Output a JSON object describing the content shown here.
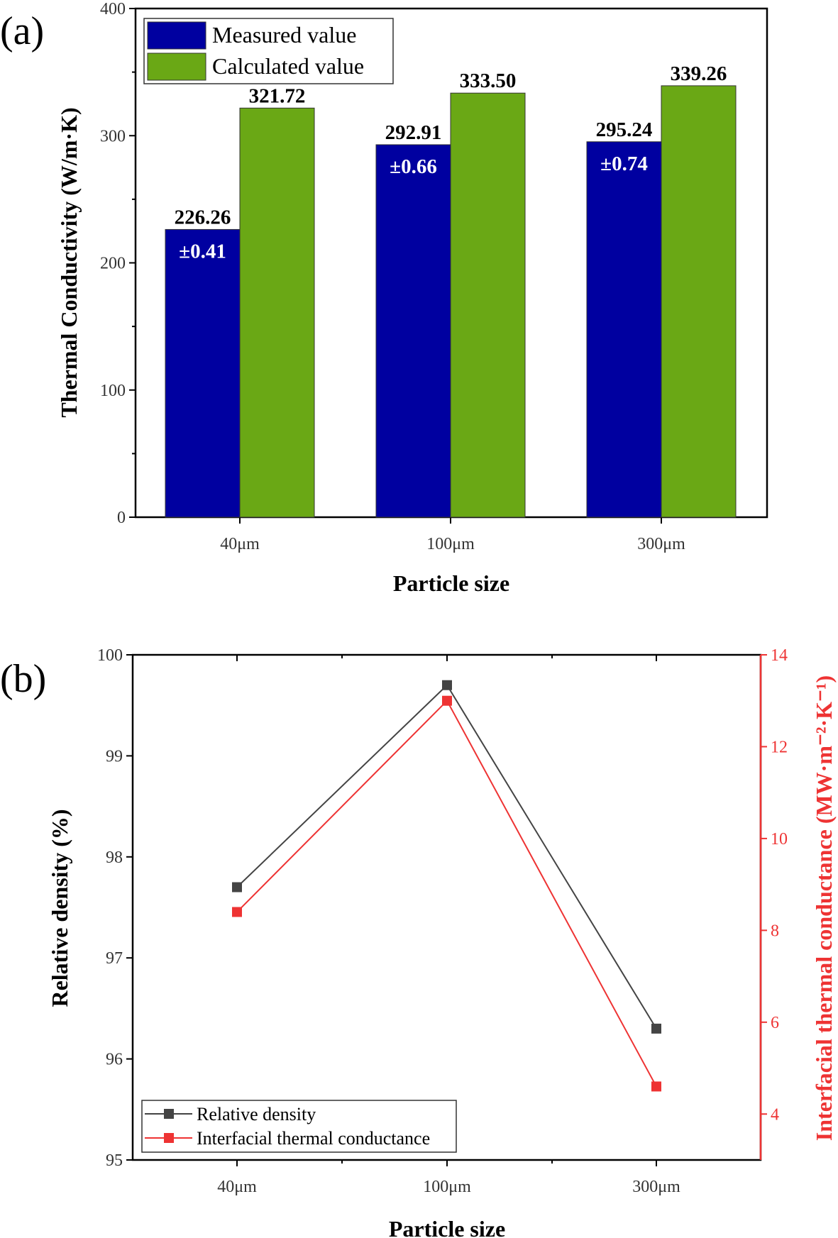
{
  "chart_data": [
    {
      "type": "bar",
      "panel_label": "(a)",
      "title": "",
      "xlabel": "Particle size",
      "ylabel": "Thermal Conductivity (W/m·K)",
      "categories": [
        "40μm",
        "100μm",
        "300μm"
      ],
      "ylim": [
        0,
        400
      ],
      "yticks": [
        "0",
        "100",
        "200",
        "300",
        "400"
      ],
      "legend_position": "top-left",
      "series": [
        {
          "name": "Measured value",
          "color": "#0000a0",
          "values": [
            226.26,
            292.91,
            295.24
          ],
          "labels": [
            "226.26",
            "292.91",
            "295.24"
          ],
          "errors": [
            "±0.41",
            "±0.66",
            "±0.74"
          ]
        },
        {
          "name": "Calculated value",
          "color": "#6aa815",
          "values": [
            321.72,
            333.5,
            339.26
          ],
          "labels": [
            "321.72",
            "333.50",
            "339.26"
          ]
        }
      ]
    },
    {
      "type": "line",
      "panel_label": "(b)",
      "xlabel": "Particle size",
      "ylabel": "Relative density (%)",
      "y2label": "Interfacial thermal conductance (MW·m⁻²·K⁻¹)",
      "categories": [
        "40μm",
        "100μm",
        "300μm"
      ],
      "ylim": [
        95,
        100
      ],
      "yticks": [
        "95",
        "96",
        "97",
        "98",
        "99",
        "100"
      ],
      "y2lim": [
        3,
        14
      ],
      "y2ticks": [
        "4",
        "6",
        "8",
        "10",
        "12",
        "14"
      ],
      "legend_position": "bottom-left",
      "series": [
        {
          "name": "Relative density",
          "color": "#444444",
          "axis": "left",
          "values": [
            97.7,
            99.7,
            96.3
          ]
        },
        {
          "name": "Interfacial thermal conductance",
          "color": "#ee3333",
          "axis": "right",
          "values": [
            8.4,
            13.0,
            4.6
          ]
        }
      ]
    }
  ]
}
